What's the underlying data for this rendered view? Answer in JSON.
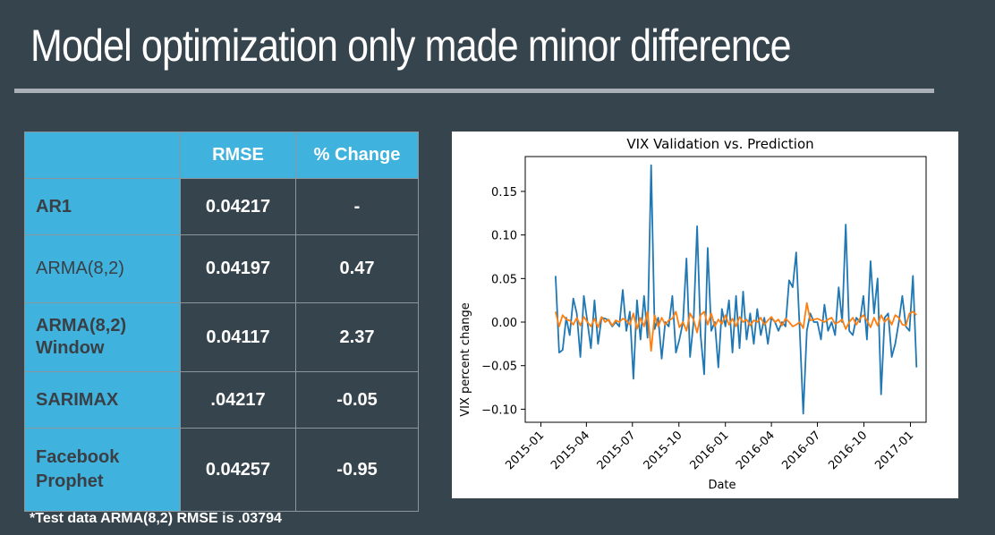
{
  "slide": {
    "title": "Model optimization only made minor difference",
    "footnote": "*Test data ARMA(8,2) RMSE is .03794"
  },
  "table": {
    "headers": [
      "",
      "RMSE",
      "% Change"
    ],
    "rows": [
      {
        "model": "AR1",
        "rmse": "0.04217",
        "change": "-"
      },
      {
        "model": "ARMA(8,2)",
        "rmse": "0.04197",
        "change": "0.47"
      },
      {
        "model": "ARMA(8,2)\nWindow",
        "rmse": "0.04117",
        "change": "2.37"
      },
      {
        "model": "SARIMAX",
        "rmse": ".04217",
        "change": "-0.05"
      },
      {
        "model": "Facebook\nProphet",
        "rmse": "0.04257",
        "change": "-0.95"
      }
    ]
  },
  "colors": {
    "background": "#36444d",
    "table_accent": "#3fb3dd",
    "series_validation": "#1f77b4",
    "series_prediction": "#ff7f0e"
  },
  "chart_data": {
    "type": "line",
    "title": "VIX Validation vs. Prediction",
    "xlabel": "Date",
    "ylabel": "VIX percent change",
    "x_ticks": [
      "2015-01",
      "2015-04",
      "2015-07",
      "2015-10",
      "2016-01",
      "2016-04",
      "2016-07",
      "2016-10",
      "2017-01"
    ],
    "y_ticks": [
      "0.15",
      "0.10",
      "0.05",
      "0.00",
      "−0.05",
      "−0.10"
    ],
    "y_tick_values": [
      0.15,
      0.1,
      0.05,
      0.0,
      -0.05,
      -0.1
    ],
    "xlim": [
      "2014-12-01",
      "2017-02-01"
    ],
    "ylim": [
      -0.115,
      0.19
    ],
    "grid": false,
    "series": [
      {
        "color": "#1f77b4",
        "x": [
          "2015-01-30",
          "2015-02-06",
          "2015-02-13",
          "2015-02-20",
          "2015-02-27",
          "2015-03-06",
          "2015-03-13",
          "2015-03-20",
          "2015-03-27",
          "2015-04-03",
          "2015-04-10",
          "2015-04-17",
          "2015-04-24",
          "2015-05-01",
          "2015-05-08",
          "2015-05-15",
          "2015-05-22",
          "2015-05-29",
          "2015-06-05",
          "2015-06-12",
          "2015-06-19",
          "2015-06-26",
          "2015-07-03",
          "2015-07-10",
          "2015-07-17",
          "2015-07-24",
          "2015-07-31",
          "2015-08-07",
          "2015-08-14",
          "2015-08-21",
          "2015-08-28",
          "2015-09-04",
          "2015-09-11",
          "2015-09-18",
          "2015-09-25",
          "2015-10-02",
          "2015-10-09",
          "2015-10-16",
          "2015-10-23",
          "2015-10-30",
          "2015-11-06",
          "2015-11-13",
          "2015-11-20",
          "2015-11-27",
          "2015-12-04",
          "2015-12-11",
          "2015-12-18",
          "2015-12-25",
          "2016-01-01",
          "2016-01-08",
          "2016-01-15",
          "2016-01-22",
          "2016-01-29",
          "2016-02-05",
          "2016-02-12",
          "2016-02-19",
          "2016-02-26",
          "2016-03-04",
          "2016-03-11",
          "2016-03-18",
          "2016-03-25",
          "2016-04-01",
          "2016-04-08",
          "2016-04-15",
          "2016-04-22",
          "2016-04-29",
          "2016-05-06",
          "2016-05-13",
          "2016-05-20",
          "2016-05-27",
          "2016-06-03",
          "2016-06-10",
          "2016-06-17",
          "2016-06-24",
          "2016-07-01",
          "2016-07-08",
          "2016-07-15",
          "2016-07-22",
          "2016-07-29",
          "2016-08-05",
          "2016-08-12",
          "2016-08-19",
          "2016-08-26",
          "2016-09-02",
          "2016-09-09",
          "2016-09-16",
          "2016-09-23",
          "2016-09-30",
          "2016-10-07",
          "2016-10-14",
          "2016-10-21",
          "2016-10-28",
          "2016-11-04",
          "2016-11-11",
          "2016-11-18",
          "2016-11-25",
          "2016-12-02",
          "2016-12-09",
          "2016-12-16",
          "2016-12-23",
          "2016-12-30",
          "2017-01-06",
          "2017-01-13"
        ],
        "y": [
          0.053,
          -0.035,
          -0.032,
          0.005,
          -0.015,
          0.027,
          0.01,
          -0.04,
          0.03,
          0.0,
          -0.03,
          0.025,
          -0.025,
          0.005,
          0.004,
          0.002,
          -0.005,
          0.0,
          -0.005,
          0.037,
          -0.01,
          0.012,
          -0.065,
          0.025,
          -0.02,
          0.03,
          -0.018,
          0.18,
          -0.008,
          0.005,
          -0.042,
          0.0,
          -0.005,
          0.03,
          -0.035,
          -0.02,
          0.0,
          0.073,
          -0.04,
          0.0,
          0.11,
          -0.015,
          -0.06,
          0.085,
          -0.01,
          0.0,
          -0.052,
          0.015,
          -0.005,
          0.025,
          -0.035,
          0.03,
          -0.03,
          0.035,
          -0.02,
          0.01,
          -0.025,
          0.015,
          -0.015,
          0.005,
          -0.025,
          0.005,
          0.0,
          -0.01,
          0.0,
          -0.005,
          0.048,
          0.04,
          0.08,
          -0.01,
          -0.105,
          -0.01,
          0.01,
          0.0,
          0.0,
          -0.02,
          0.02,
          -0.01,
          0.0,
          -0.015,
          0.04,
          0.0,
          0.112,
          -0.01,
          -0.015,
          0.005,
          0.0,
          0.03,
          -0.02,
          0.07,
          0.01,
          0.05,
          -0.083,
          0.005,
          0.01,
          -0.04,
          -0.025,
          0.0,
          0.03,
          -0.005,
          -0.01,
          0.053,
          -0.052
        ]
      },
      {
        "color": "#ff7f0e",
        "x": [
          "2015-01-30",
          "2015-02-06",
          "2015-02-13",
          "2015-02-20",
          "2015-02-27",
          "2015-03-06",
          "2015-03-13",
          "2015-03-20",
          "2015-03-27",
          "2015-04-03",
          "2015-04-10",
          "2015-04-17",
          "2015-04-24",
          "2015-05-01",
          "2015-05-08",
          "2015-05-15",
          "2015-05-22",
          "2015-05-29",
          "2015-06-05",
          "2015-06-12",
          "2015-06-19",
          "2015-06-26",
          "2015-07-03",
          "2015-07-10",
          "2015-07-17",
          "2015-07-24",
          "2015-07-31",
          "2015-08-07",
          "2015-08-14",
          "2015-08-21",
          "2015-08-28",
          "2015-09-04",
          "2015-09-11",
          "2015-09-18",
          "2015-09-25",
          "2015-10-02",
          "2015-10-09",
          "2015-10-16",
          "2015-10-23",
          "2015-10-30",
          "2015-11-06",
          "2015-11-13",
          "2015-11-20",
          "2015-11-27",
          "2015-12-04",
          "2015-12-11",
          "2015-12-18",
          "2015-12-25",
          "2016-01-01",
          "2016-01-08",
          "2016-01-15",
          "2016-01-22",
          "2016-01-29",
          "2016-02-05",
          "2016-02-12",
          "2016-02-19",
          "2016-02-26",
          "2016-03-04",
          "2016-03-11",
          "2016-03-18",
          "2016-03-25",
          "2016-04-01",
          "2016-04-08",
          "2016-04-15",
          "2016-04-22",
          "2016-04-29",
          "2016-05-06",
          "2016-05-13",
          "2016-05-20",
          "2016-05-27",
          "2016-06-03",
          "2016-06-10",
          "2016-06-17",
          "2016-06-24",
          "2016-07-01",
          "2016-07-08",
          "2016-07-15",
          "2016-07-22",
          "2016-07-29",
          "2016-08-05",
          "2016-08-12",
          "2016-08-19",
          "2016-08-26",
          "2016-09-02",
          "2016-09-09",
          "2016-09-16",
          "2016-09-23",
          "2016-09-30",
          "2016-10-07",
          "2016-10-14",
          "2016-10-21",
          "2016-10-28",
          "2016-11-04",
          "2016-11-11",
          "2016-11-18",
          "2016-11-25",
          "2016-12-02",
          "2016-12-09",
          "2016-12-16",
          "2016-12-23",
          "2016-12-30",
          "2017-01-06",
          "2017-01-13"
        ],
        "y": [
          0.012,
          -0.005,
          0.008,
          0.003,
          0.002,
          -0.003,
          0.005,
          -0.004,
          0.006,
          0.0,
          -0.005,
          0.004,
          -0.006,
          0.006,
          0.0,
          0.003,
          -0.004,
          0.002,
          0.0,
          0.004,
          0.002,
          -0.003,
          0.01,
          -0.008,
          0.005,
          -0.005,
          0.012,
          -0.033,
          0.008,
          -0.005,
          0.005,
          -0.003,
          0.002,
          0.004,
          0.012,
          -0.006,
          0.0,
          -0.01,
          0.01,
          0.003,
          -0.012,
          0.008,
          0.012,
          -0.003,
          0.01,
          -0.005,
          0.003,
          -0.002,
          0.008,
          -0.003,
          0.004,
          -0.005,
          0.006,
          0.0,
          0.003,
          -0.004,
          0.002,
          0.0,
          0.005,
          -0.003,
          0.002,
          0.006,
          0.0,
          0.003,
          -0.004,
          0.004,
          0.0,
          -0.005,
          -0.003,
          0.0,
          -0.007,
          0.022,
          0.002,
          0.003,
          0.004,
          0.002,
          0.0,
          0.003,
          0.005,
          -0.002,
          0.0,
          0.003,
          -0.008,
          0.0,
          0.005,
          -0.003,
          0.004,
          0.008,
          0.002,
          -0.006,
          0.005,
          -0.004,
          0.008,
          0.0,
          0.005,
          -0.003,
          0.008,
          0.005,
          -0.003,
          -0.004,
          0.01,
          0.012,
          0.008
        ]
      }
    ]
  }
}
